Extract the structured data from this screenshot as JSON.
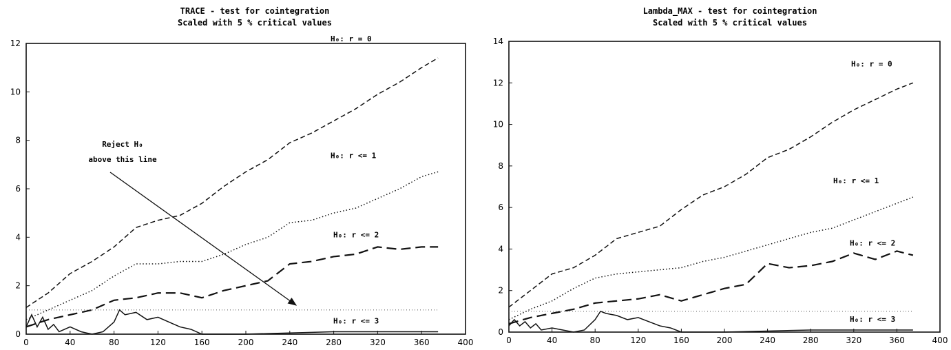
{
  "chart_data": [
    {
      "type": "line",
      "title": "TRACE - test for cointegration",
      "subtitle": "Scaled with 5 % critical values",
      "xlim": [
        0,
        400
      ],
      "ylim": [
        0,
        12
      ],
      "xticks": [
        "0",
        "40",
        "80",
        "120",
        "160",
        "200",
        "240",
        "280",
        "320",
        "360",
        "400"
      ],
      "yticks": [
        "0",
        "2",
        "4",
        "6",
        "8",
        "10",
        "12"
      ],
      "threshold": 1,
      "series": [
        {
          "label": "H₀: r = 0",
          "style": "dashed",
          "x": [
            0,
            20,
            40,
            60,
            80,
            100,
            120,
            140,
            160,
            180,
            200,
            220,
            240,
            260,
            280,
            300,
            320,
            340,
            360,
            375
          ],
          "y": [
            1.1,
            1.7,
            2.5,
            3.0,
            3.6,
            4.4,
            4.7,
            4.9,
            5.4,
            6.1,
            6.7,
            7.2,
            7.9,
            8.3,
            8.8,
            9.3,
            9.9,
            10.4,
            11.0,
            11.4
          ]
        },
        {
          "label": "H₀: r <= 1",
          "style": "dotted",
          "x": [
            0,
            20,
            40,
            60,
            80,
            100,
            120,
            140,
            160,
            180,
            200,
            220,
            240,
            260,
            280,
            300,
            320,
            340,
            360,
            375
          ],
          "y": [
            0.6,
            1.0,
            1.4,
            1.8,
            2.4,
            2.9,
            2.9,
            3.0,
            3.0,
            3.3,
            3.7,
            4.0,
            4.6,
            4.7,
            5.0,
            5.2,
            5.6,
            6.0,
            6.5,
            6.7
          ]
        },
        {
          "label": "H₀: r <= 2",
          "style": "longdash",
          "x": [
            0,
            20,
            40,
            60,
            80,
            100,
            120,
            140,
            160,
            180,
            200,
            220,
            240,
            260,
            280,
            300,
            320,
            340,
            360,
            375
          ],
          "y": [
            0.3,
            0.6,
            0.8,
            1.0,
            1.4,
            1.5,
            1.7,
            1.7,
            1.5,
            1.8,
            2.0,
            2.2,
            2.9,
            3.0,
            3.2,
            3.3,
            3.6,
            3.5,
            3.6,
            3.6
          ]
        },
        {
          "label": "H₀: r <= 3",
          "style": "solid",
          "x": [
            0,
            5,
            10,
            15,
            20,
            25,
            30,
            40,
            50,
            60,
            70,
            80,
            85,
            90,
            100,
            110,
            120,
            130,
            140,
            150,
            160,
            200,
            240,
            280,
            320,
            360,
            375
          ],
          "y": [
            0.3,
            0.8,
            0.3,
            0.7,
            0.2,
            0.4,
            0.1,
            0.3,
            0.1,
            0.0,
            0.1,
            0.5,
            1.0,
            0.8,
            0.9,
            0.6,
            0.7,
            0.5,
            0.3,
            0.2,
            0.0,
            0.0,
            0.05,
            0.1,
            0.1,
            0.1,
            0.1
          ]
        }
      ],
      "annotation": {
        "line1": "Reject H₀",
        "line2": "above this line",
        "arrow_from": [
          72,
          7.2
        ],
        "arrow_to": [
          250,
          1.1
        ]
      }
    },
    {
      "type": "line",
      "title": "Lambda_MAX - test for cointegration",
      "subtitle": "Scaled with 5 % critical values",
      "xlim": [
        0,
        400
      ],
      "ylim": [
        0,
        14
      ],
      "xticks": [
        "0",
        "40",
        "80",
        "120",
        "160",
        "200",
        "240",
        "280",
        "320",
        "360",
        "400"
      ],
      "yticks": [
        "0",
        "2",
        "4",
        "6",
        "8",
        "10",
        "12",
        "14"
      ],
      "threshold": 1,
      "series": [
        {
          "label": "H₀: r = 0",
          "style": "dashed",
          "x": [
            0,
            20,
            40,
            60,
            80,
            100,
            120,
            140,
            160,
            180,
            200,
            220,
            240,
            260,
            280,
            300,
            320,
            340,
            360,
            375
          ],
          "y": [
            1.2,
            2.0,
            2.8,
            3.1,
            3.7,
            4.5,
            4.8,
            5.1,
            5.9,
            6.6,
            7.0,
            7.6,
            8.4,
            8.8,
            9.4,
            10.1,
            10.7,
            11.2,
            11.7,
            12.0
          ]
        },
        {
          "label": "H₀: r <= 1",
          "style": "dotted",
          "x": [
            0,
            20,
            40,
            60,
            80,
            100,
            120,
            140,
            160,
            180,
            200,
            220,
            240,
            260,
            280,
            300,
            320,
            340,
            360,
            375
          ],
          "y": [
            0.6,
            1.1,
            1.5,
            2.1,
            2.6,
            2.8,
            2.9,
            3.0,
            3.1,
            3.4,
            3.6,
            3.9,
            4.2,
            4.5,
            4.8,
            5.0,
            5.4,
            5.8,
            6.2,
            6.5
          ]
        },
        {
          "label": "H₀: r <= 2",
          "style": "longdash",
          "x": [
            0,
            20,
            40,
            60,
            80,
            100,
            120,
            140,
            160,
            180,
            200,
            220,
            240,
            260,
            280,
            300,
            320,
            340,
            360,
            375
          ],
          "y": [
            0.4,
            0.7,
            0.9,
            1.1,
            1.4,
            1.5,
            1.6,
            1.8,
            1.5,
            1.8,
            2.1,
            2.3,
            3.3,
            3.1,
            3.2,
            3.4,
            3.8,
            3.5,
            3.9,
            3.7
          ]
        },
        {
          "label": "H₀: r <= 3",
          "style": "solid",
          "x": [
            0,
            5,
            10,
            15,
            20,
            25,
            30,
            40,
            50,
            60,
            70,
            80,
            85,
            90,
            100,
            110,
            120,
            130,
            140,
            150,
            160,
            200,
            240,
            280,
            320,
            360,
            375
          ],
          "y": [
            0.3,
            0.6,
            0.3,
            0.5,
            0.2,
            0.4,
            0.1,
            0.2,
            0.1,
            0.0,
            0.1,
            0.6,
            1.0,
            0.9,
            0.8,
            0.6,
            0.7,
            0.5,
            0.3,
            0.2,
            0.0,
            0.0,
            0.05,
            0.1,
            0.1,
            0.1,
            0.1
          ]
        }
      ]
    }
  ]
}
